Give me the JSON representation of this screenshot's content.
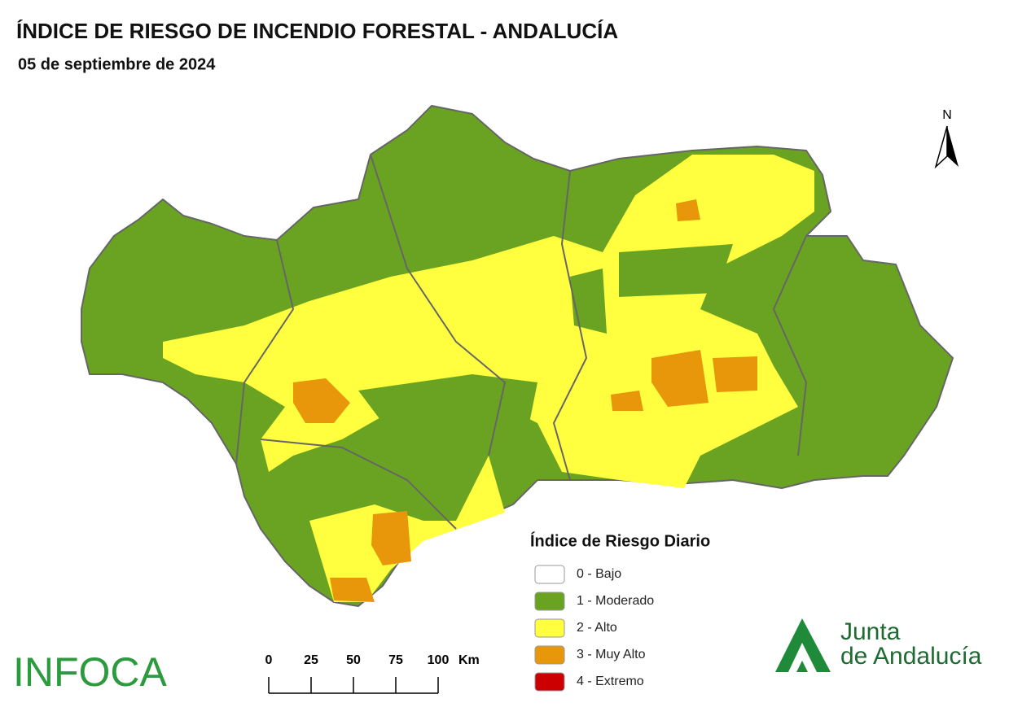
{
  "header": {
    "title": "ÍNDICE DE RIESGO DE INCENDIO FORESTAL - ANDALUCÍA",
    "subtitle": "05 de septiembre de 2024"
  },
  "north": "N",
  "legend": {
    "title": "Índice de Riesgo Diario",
    "items": [
      {
        "label": "0 - Bajo",
        "color": "#ffffff"
      },
      {
        "label": "1 - Moderado",
        "color": "#6aa321"
      },
      {
        "label": "2 - Alto",
        "color": "#ffff40"
      },
      {
        "label": "3 - Muy Alto",
        "color": "#e8960a"
      },
      {
        "label": "4 - Extremo",
        "color": "#cc0000"
      }
    ]
  },
  "scale": {
    "ticks": [
      0,
      25,
      50,
      75,
      100
    ],
    "unit": "Km"
  },
  "logos": {
    "infoca": "INFOCA",
    "junta_line1": "Junta",
    "junta_line2": "de Andalucía"
  }
}
